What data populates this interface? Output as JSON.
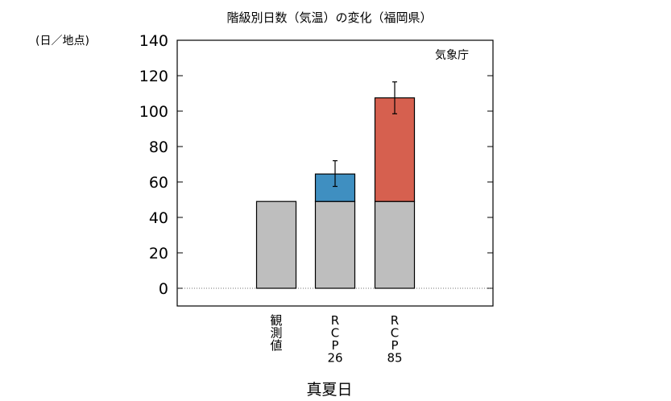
{
  "chart_data": {
    "type": "bar",
    "title": "階級別日数（気温）の変化（福岡県）",
    "unit_label": "(日／地点)",
    "source_label": "気象庁",
    "xlabel": "真夏日",
    "ylim": [
      -10,
      140
    ],
    "yticks": [
      0,
      20,
      40,
      60,
      80,
      100,
      120,
      140
    ],
    "zero_line": "dotted",
    "categories": [
      {
        "lines": [
          "観",
          "測",
          "値"
        ]
      },
      {
        "lines": [
          "R",
          "C",
          "P",
          "26"
        ]
      },
      {
        "lines": [
          "R",
          "C",
          "P",
          "85"
        ]
      }
    ],
    "base_values": [
      49,
      49,
      49
    ],
    "increase_values": [
      null,
      15.5,
      58.5
    ],
    "totals": [
      49,
      64.5,
      107.5
    ],
    "error_bars": [
      null,
      {
        "low": 57.5,
        "high": 72
      },
      {
        "low": 98.5,
        "high": 116.5
      }
    ],
    "colors": {
      "base": "#bebebe",
      "increase": [
        "#bebebe",
        "#3f8fc1",
        "#d6604f"
      ]
    }
  }
}
